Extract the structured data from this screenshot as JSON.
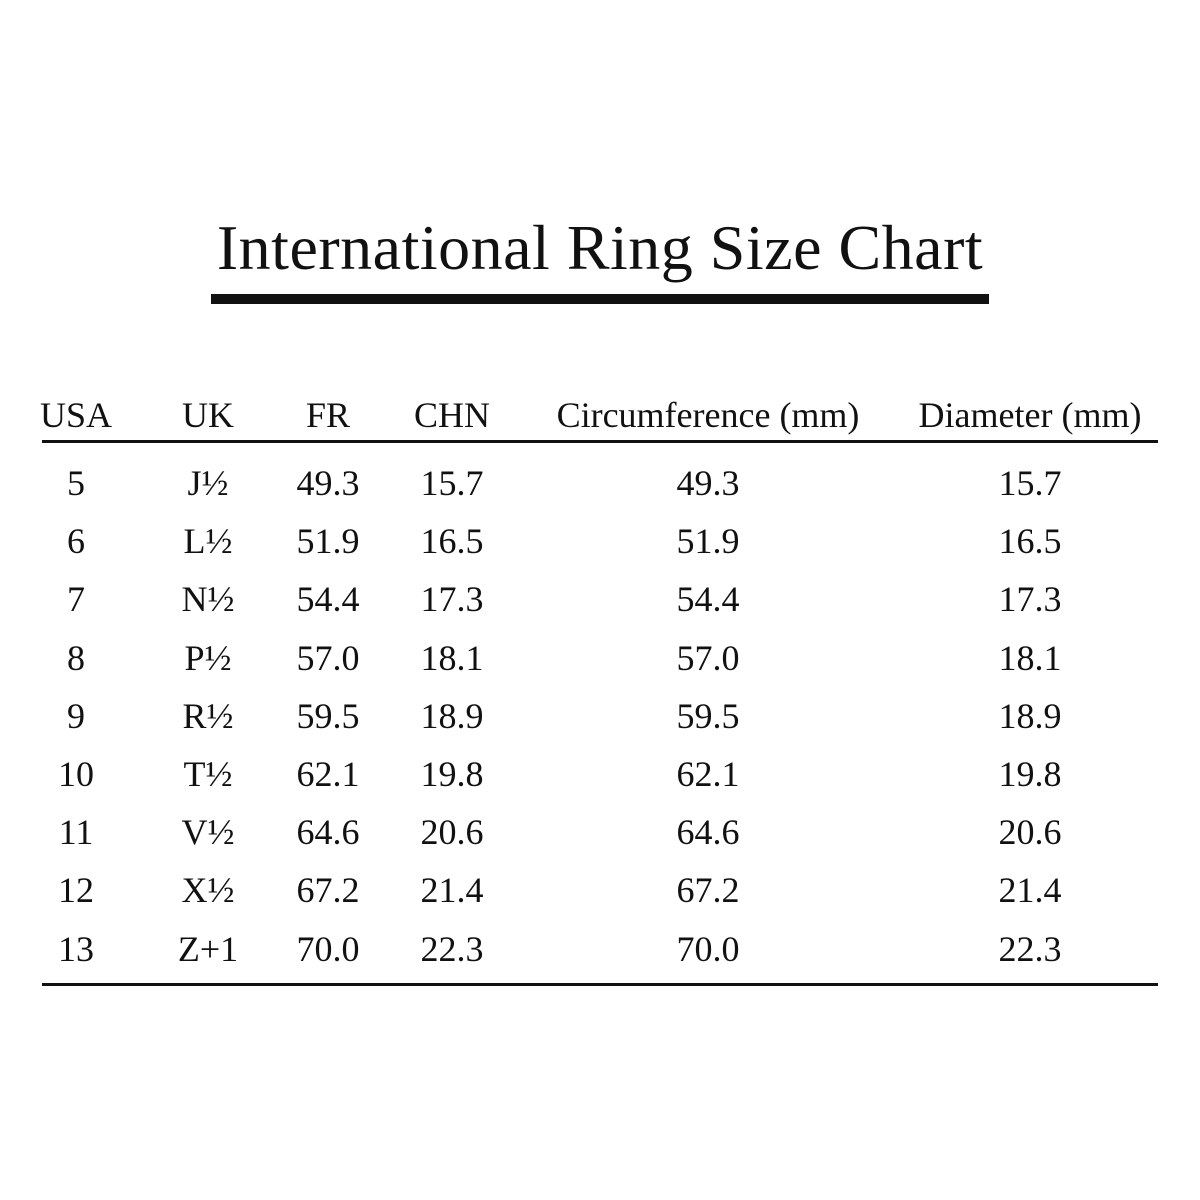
{
  "title": "International Ring Size Chart",
  "table": {
    "headers": [
      "USA",
      "UK",
      "FR",
      "CHN",
      "Circumference (mm)",
      "Diameter (mm)"
    ],
    "rows": [
      [
        "5",
        "J½",
        "49.3",
        "15.7",
        "49.3",
        "15.7"
      ],
      [
        "6",
        "L½",
        "51.9",
        "16.5",
        "51.9",
        "16.5"
      ],
      [
        "7",
        "N½",
        "54.4",
        "17.3",
        "54.4",
        "17.3"
      ],
      [
        "8",
        "P½",
        "57.0",
        "18.1",
        "57.0",
        "18.1"
      ],
      [
        "9",
        "R½",
        "59.5",
        "18.9",
        "59.5",
        "18.9"
      ],
      [
        "10",
        "T½",
        "62.1",
        "19.8",
        "62.1",
        "19.8"
      ],
      [
        "11",
        "V½",
        "64.6",
        "20.6",
        "64.6",
        "20.6"
      ],
      [
        "12",
        "X½",
        "67.2",
        "21.4",
        "67.2",
        "21.4"
      ],
      [
        "13",
        "Z+1",
        "70.0",
        "22.3",
        "70.0",
        "22.3"
      ]
    ]
  }
}
